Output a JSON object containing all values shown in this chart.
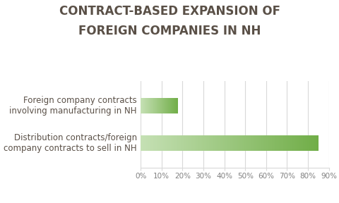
{
  "title_line1": "CONTRACT-BASED EXPANSION OF",
  "title_line2": "FOREIGN COMPANIES IN NH",
  "title_fontsize": 12,
  "title_color": "#5a5047",
  "categories": [
    "Distribution contracts/foreign\ncompany contracts to sell in NH",
    "Foreign company contracts\ninvolving manufacturing in NH"
  ],
  "values": [
    85,
    18
  ],
  "bar_color_light": "#c5e0b4",
  "bar_color_dark": "#70ad47",
  "label_fontsize": 8.5,
  "label_color": "#5a5047",
  "xlim": [
    0,
    90
  ],
  "xtick_vals": [
    0,
    10,
    20,
    30,
    40,
    50,
    60,
    70,
    80,
    90
  ],
  "xtick_labels": [
    "0%",
    "10%",
    "20%",
    "30%",
    "40%",
    "50%",
    "60%",
    "70%",
    "80%",
    "90%"
  ],
  "background_color": "#ffffff",
  "grid_color": "#d9d9d9",
  "bar_height": 0.42
}
